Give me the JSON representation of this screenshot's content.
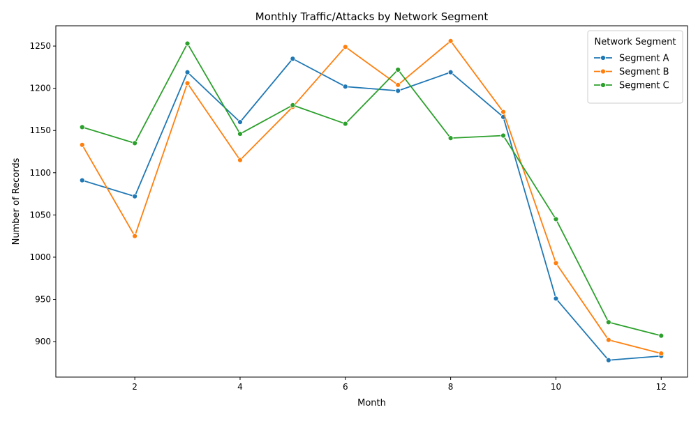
{
  "chart_data": {
    "type": "line",
    "title": "Monthly Traffic/Attacks by Network Segment",
    "xlabel": "Month",
    "ylabel": "Number of Records",
    "x": [
      1,
      2,
      3,
      4,
      5,
      6,
      7,
      8,
      9,
      10,
      11,
      12
    ],
    "xlim": [
      0.5,
      12.5
    ],
    "ylim": [
      858,
      1274
    ],
    "xticks": [
      2,
      4,
      6,
      8,
      10,
      12
    ],
    "yticks": [
      900,
      950,
      1000,
      1050,
      1100,
      1150,
      1200,
      1250
    ],
    "grid": false,
    "legend": {
      "title": "Network Segment",
      "placement": "top-right"
    },
    "series": [
      {
        "name": "Segment A",
        "color": "#1f77b4",
        "values": [
          1091,
          1072,
          1219,
          1160,
          1235,
          1202,
          1197,
          1219,
          1166,
          951,
          878,
          883
        ]
      },
      {
        "name": "Segment B",
        "color": "#ff7f0e",
        "values": [
          1133,
          1025,
          1206,
          1115,
          1178,
          1249,
          1204,
          1256,
          1172,
          993,
          902,
          886
        ]
      },
      {
        "name": "Segment C",
        "color": "#2ca02c",
        "values": [
          1154,
          1135,
          1253,
          1146,
          1180,
          1158,
          1222,
          1141,
          1144,
          1045,
          923,
          907
        ]
      }
    ]
  }
}
